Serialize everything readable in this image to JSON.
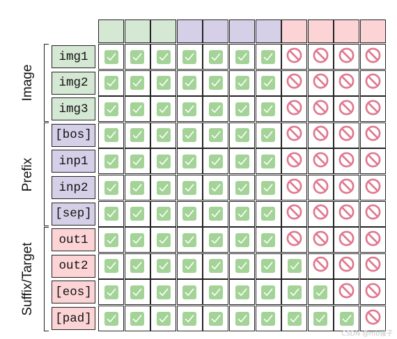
{
  "header": {
    "columns": [
      {
        "group": "image"
      },
      {
        "group": "image"
      },
      {
        "group": "image"
      },
      {
        "group": "prefix"
      },
      {
        "group": "prefix"
      },
      {
        "group": "prefix"
      },
      {
        "group": "prefix"
      },
      {
        "group": "suffix"
      },
      {
        "group": "suffix"
      },
      {
        "group": "suffix"
      },
      {
        "group": "suffix"
      }
    ]
  },
  "groups": [
    {
      "id": "image",
      "label": "Image",
      "row_start": 0,
      "row_count": 3
    },
    {
      "id": "prefix",
      "label": "Prefix",
      "row_start": 3,
      "row_count": 4
    },
    {
      "id": "suffix",
      "label": "Suffix/Target",
      "row_start": 7,
      "row_count": 4
    }
  ],
  "rows": [
    {
      "label": "img1",
      "group": "image"
    },
    {
      "label": "img2",
      "group": "image"
    },
    {
      "label": "img3",
      "group": "image"
    },
    {
      "label": "[bos]",
      "group": "prefix"
    },
    {
      "label": "inp1",
      "group": "prefix"
    },
    {
      "label": "inp2",
      "group": "prefix"
    },
    {
      "label": "[sep]",
      "group": "prefix"
    },
    {
      "label": "out1",
      "group": "suffix"
    },
    {
      "label": "out2",
      "group": "suffix"
    },
    {
      "label": "[eos]",
      "group": "suffix"
    },
    {
      "label": "[pad]",
      "group": "suffix"
    }
  ],
  "attention_mask": [
    [
      1,
      1,
      1,
      1,
      1,
      1,
      1,
      0,
      0,
      0,
      0
    ],
    [
      1,
      1,
      1,
      1,
      1,
      1,
      1,
      0,
      0,
      0,
      0
    ],
    [
      1,
      1,
      1,
      1,
      1,
      1,
      1,
      0,
      0,
      0,
      0
    ],
    [
      1,
      1,
      1,
      1,
      1,
      1,
      1,
      0,
      0,
      0,
      0
    ],
    [
      1,
      1,
      1,
      1,
      1,
      1,
      1,
      0,
      0,
      0,
      0
    ],
    [
      1,
      1,
      1,
      1,
      1,
      1,
      1,
      0,
      0,
      0,
      0
    ],
    [
      1,
      1,
      1,
      1,
      1,
      1,
      1,
      0,
      0,
      0,
      0
    ],
    [
      1,
      1,
      1,
      1,
      1,
      1,
      1,
      0,
      0,
      0,
      0
    ],
    [
      1,
      1,
      1,
      1,
      1,
      1,
      1,
      1,
      0,
      0,
      0
    ],
    [
      1,
      1,
      1,
      1,
      1,
      1,
      1,
      1,
      1,
      0,
      0
    ],
    [
      1,
      1,
      1,
      1,
      1,
      1,
      1,
      1,
      1,
      1,
      0
    ]
  ],
  "icons": {
    "allowed": "check-icon",
    "blocked": "no-entry-icon"
  },
  "colors": {
    "image": "#d5e8d4",
    "prefix": "#d5d0e8",
    "suffix": "#fcd4d6",
    "check_fill": "#a3d396",
    "block_stroke": "#e0788f"
  },
  "watermark": "CSDN @mb骚子"
}
